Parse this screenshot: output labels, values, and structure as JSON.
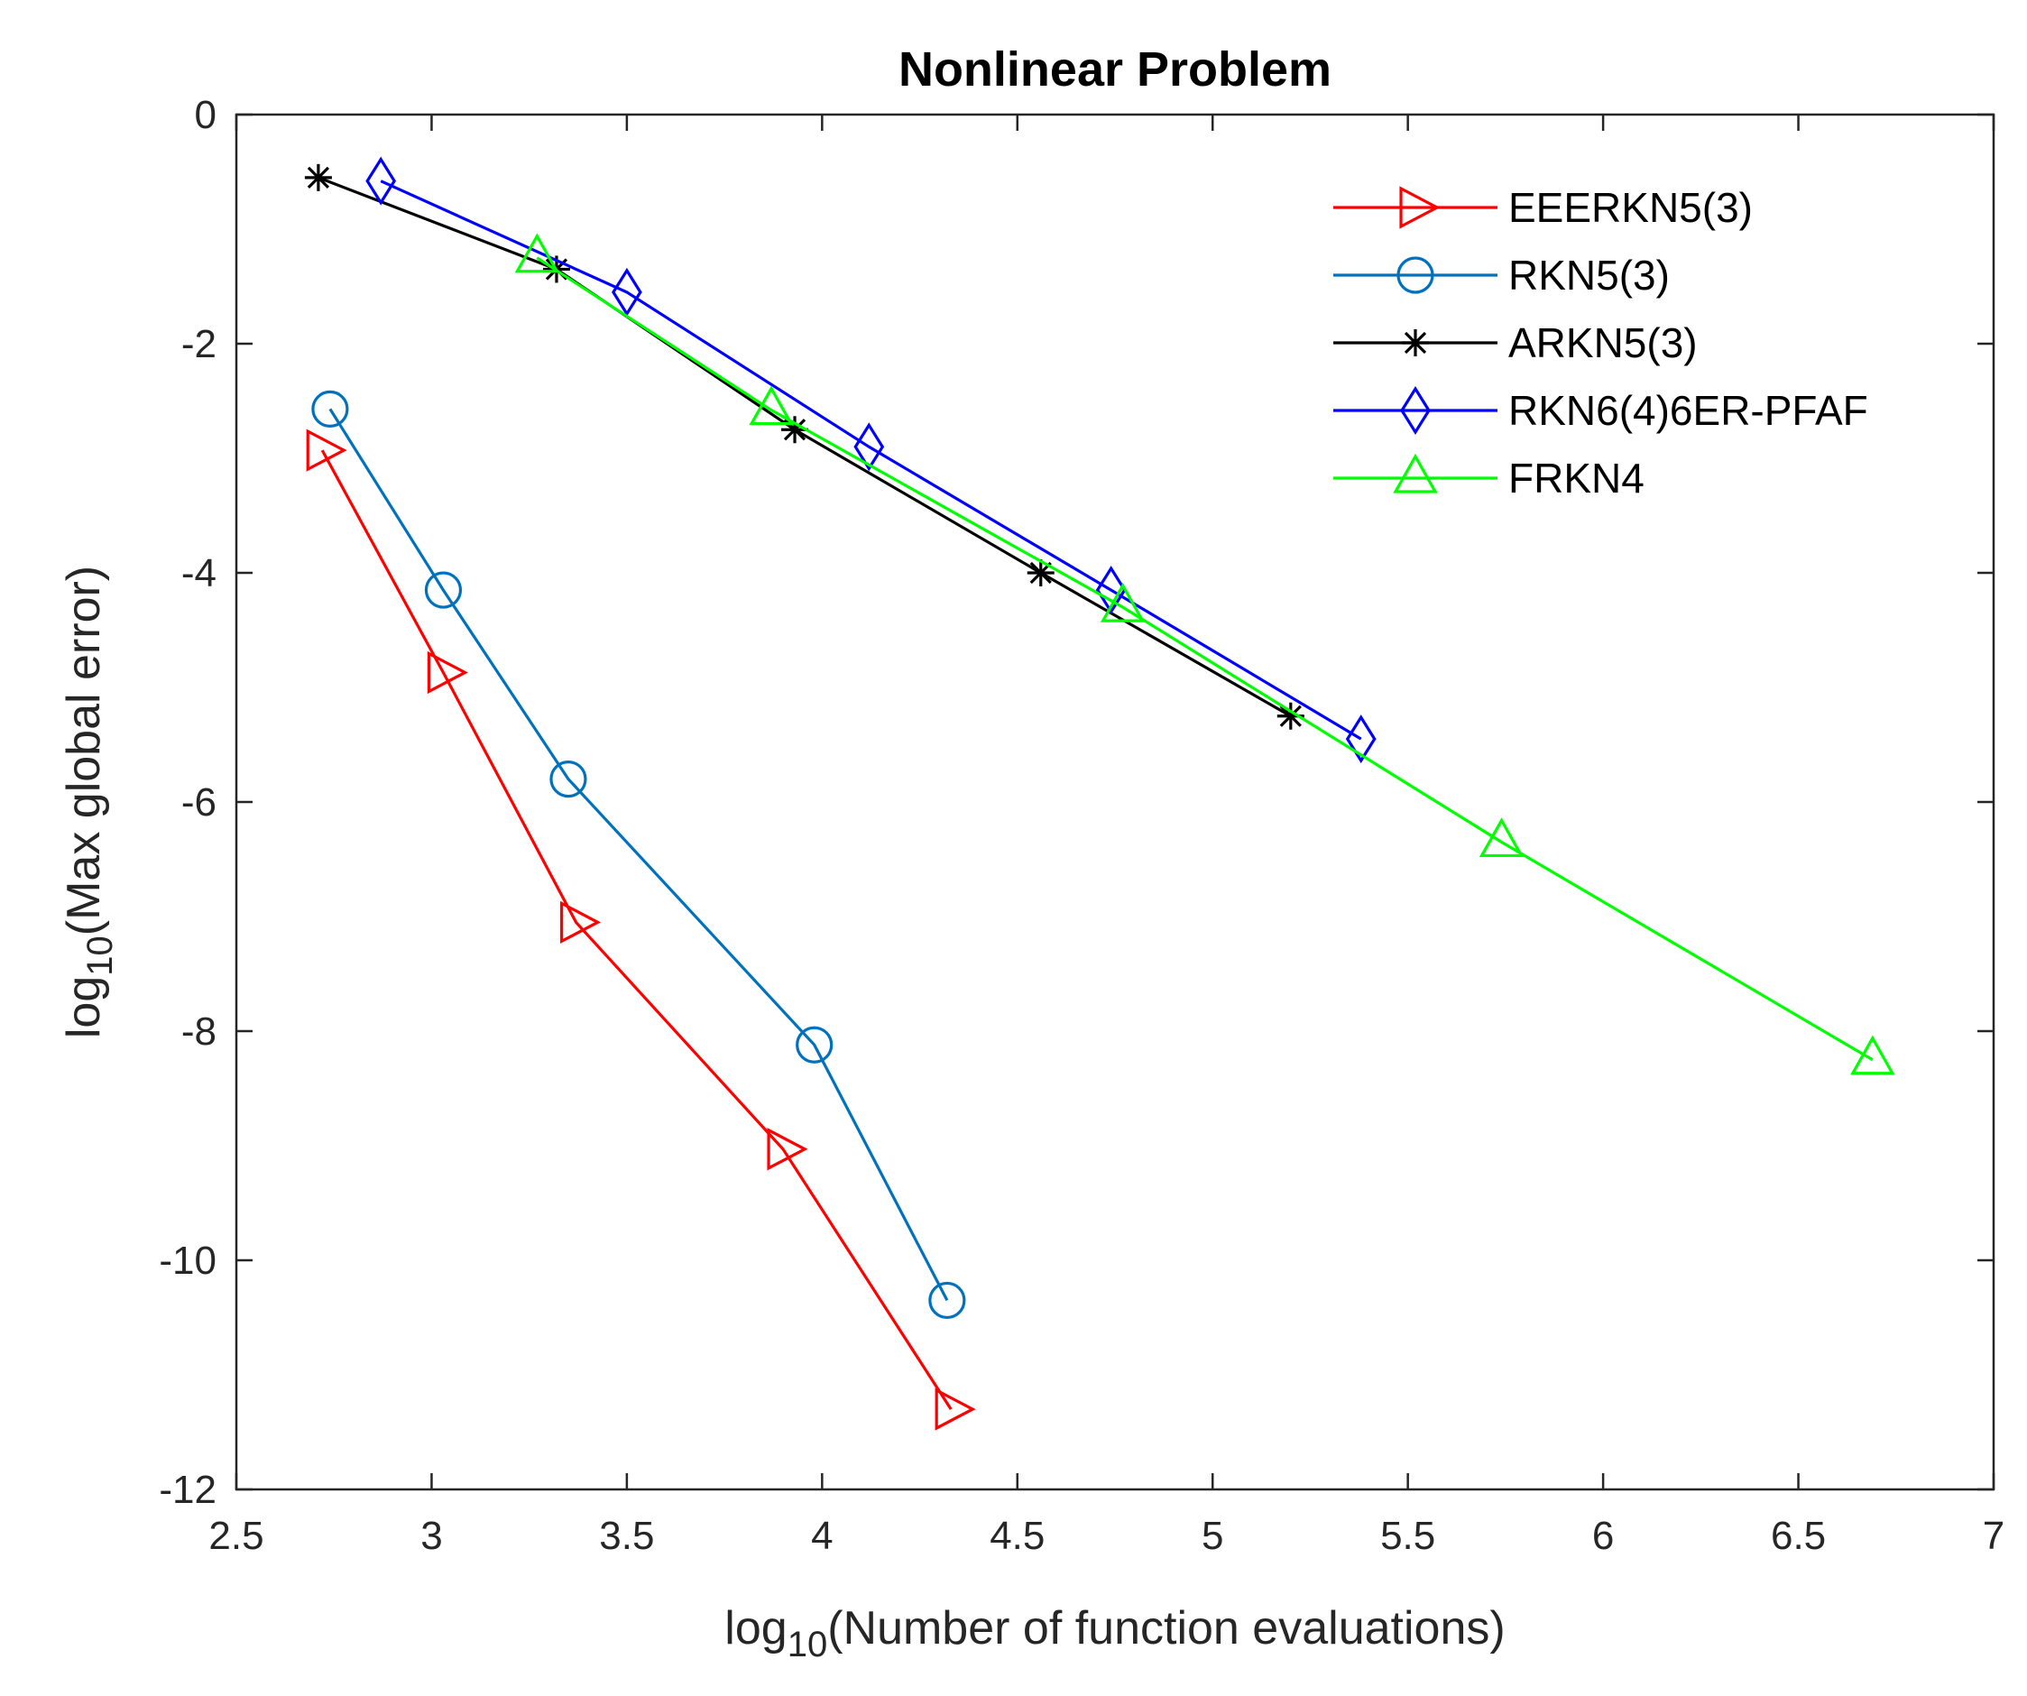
{
  "chart_data": {
    "type": "line",
    "title": "Nonlinear Problem",
    "xlabel": {
      "prefix": "log",
      "sub": "10",
      "suffix": "(Number of function evaluations)"
    },
    "ylabel": {
      "prefix": "log",
      "sub": "10",
      "suffix": "(Max global error)"
    },
    "xlim": [
      2.5,
      7
    ],
    "ylim": [
      -12,
      0
    ],
    "xticks": [
      2.5,
      3,
      3.5,
      4,
      4.5,
      5,
      5.5,
      6,
      6.5,
      7
    ],
    "yticks": [
      0,
      -2,
      -4,
      -6,
      -8,
      -10,
      -12
    ],
    "xtick_labels": [
      "2.5",
      "3",
      "3.5",
      "4",
      "4.5",
      "5",
      "5.5",
      "6",
      "6.5",
      "7"
    ],
    "ytick_labels": [
      "0",
      "-2",
      "-4",
      "-6",
      "-8",
      "-10",
      "-12"
    ],
    "grid": false,
    "legend_position": "top-right",
    "series": [
      {
        "name": "EEERKN5(3)",
        "color": "#ff0000",
        "marker": "triangle-right",
        "x": [
          2.72,
          3.03,
          3.37,
          3.9,
          4.33
        ],
        "y": [
          -2.93,
          -4.87,
          -7.05,
          -9.03,
          -11.3
        ]
      },
      {
        "name": "RKN5(3)",
        "color": "#0072bd",
        "marker": "circle",
        "x": [
          2.74,
          3.03,
          3.35,
          3.98,
          4.32
        ],
        "y": [
          -2.57,
          -4.15,
          -5.8,
          -8.12,
          -10.35
        ]
      },
      {
        "name": "ARKN5(3)",
        "color": "#000000",
        "marker": "asterisk",
        "x": [
          2.71,
          3.32,
          3.93,
          4.56,
          5.2
        ],
        "y": [
          -0.55,
          -1.35,
          -2.75,
          -4.0,
          -5.25
        ]
      },
      {
        "name": "RKN6(4)6ER-PFAF",
        "color": "#0000ff",
        "marker": "diamond",
        "x": [
          2.87,
          3.5,
          4.12,
          4.74,
          5.38
        ],
        "y": [
          -0.58,
          -1.55,
          -2.9,
          -4.15,
          -5.45
        ]
      },
      {
        "name": "FRKN4",
        "color": "#00ff00",
        "marker": "triangle-up",
        "x": [
          3.27,
          3.87,
          4.77,
          5.74,
          6.69
        ],
        "y": [
          -1.25,
          -2.58,
          -4.3,
          -6.35,
          -8.25
        ]
      }
    ]
  }
}
